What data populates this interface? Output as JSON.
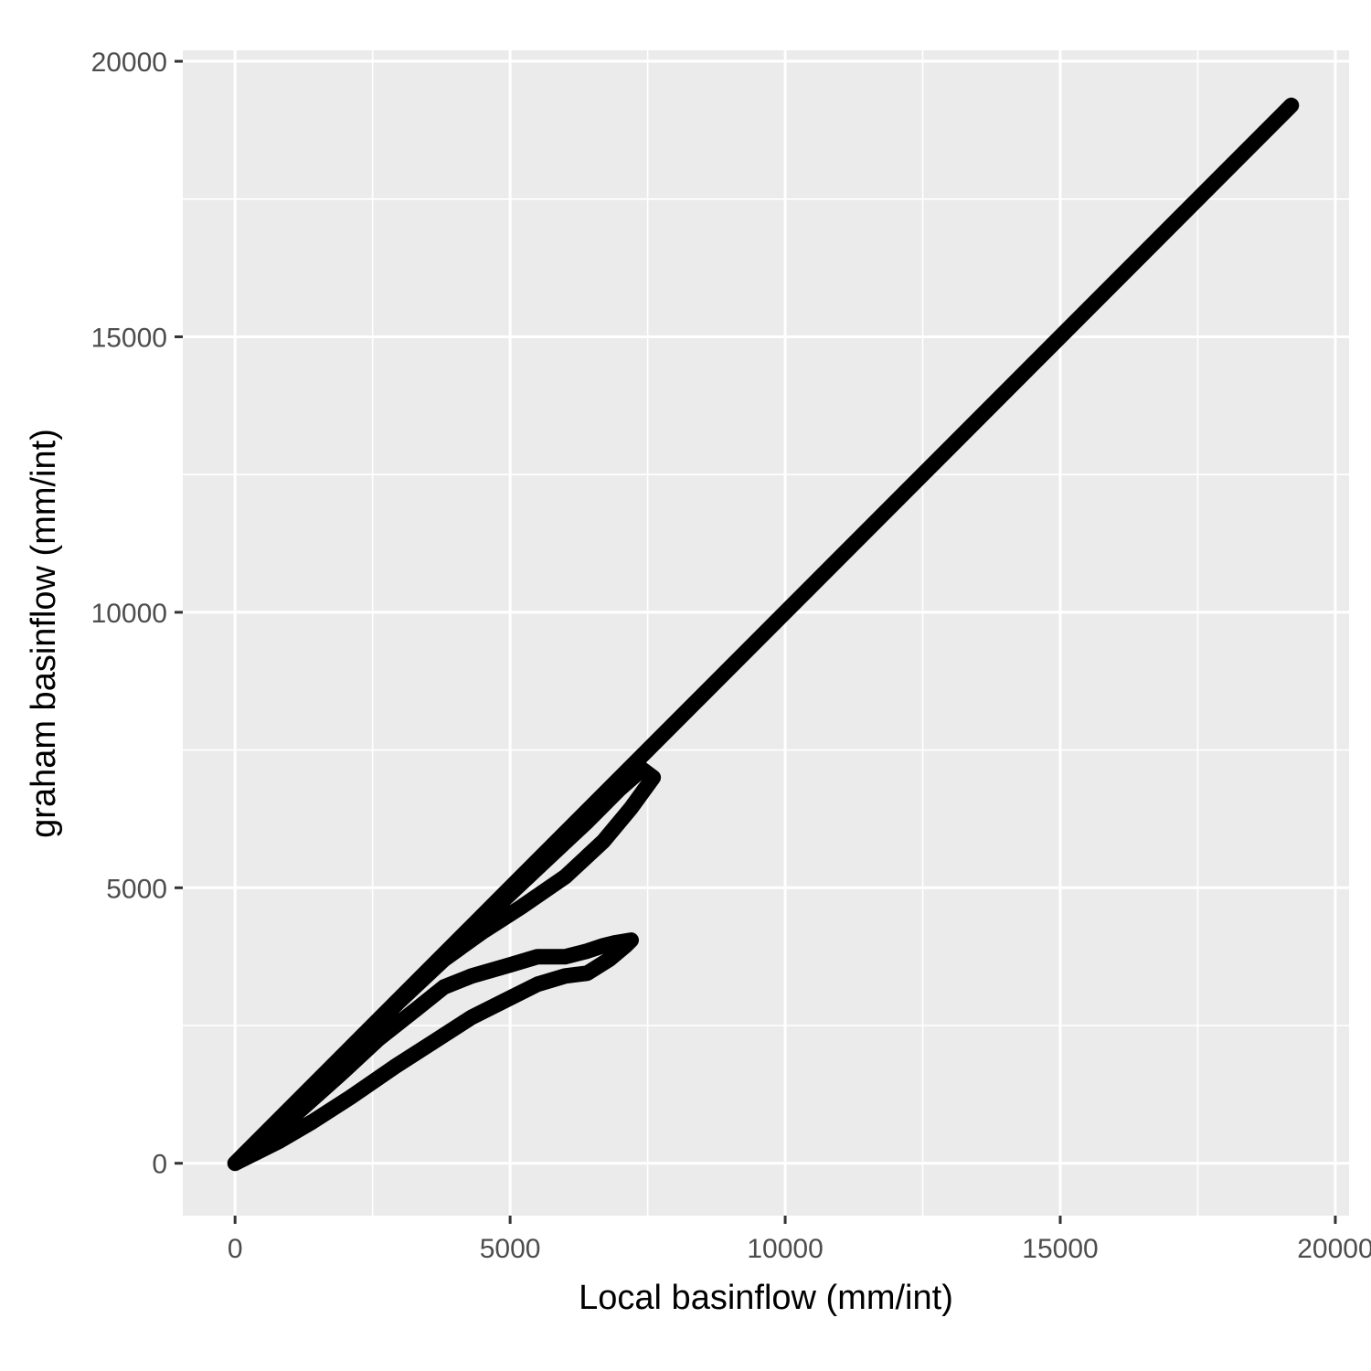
{
  "chart_data": {
    "type": "line",
    "title": "",
    "xlabel": "Local basinflow (mm/int)",
    "ylabel": "graham basinflow (mm/int)",
    "xlim": [
      -950,
      20250
    ],
    "ylim": [
      -950,
      20200
    ],
    "x_ticks": [
      0,
      5000,
      10000,
      15000,
      20000
    ],
    "y_ticks": [
      0,
      5000,
      10000,
      15000,
      20000
    ],
    "x_tick_labels": [
      "0",
      "5000",
      "10000",
      "15000",
      "20000"
    ],
    "y_tick_labels": [
      "0",
      "5000",
      "10000",
      "15000",
      "20000"
    ],
    "grid": true,
    "legend": "none",
    "colors": {
      "panel": "#ebebeb",
      "grid": "#ffffff",
      "line": "#000000",
      "tick_label": "#4d4d4d"
    },
    "series": [
      {
        "points": [
          [
            0,
            0
          ],
          [
            300,
            150
          ],
          [
            800,
            400
          ],
          [
            1400,
            750
          ],
          [
            2100,
            1200
          ],
          [
            2900,
            1750
          ],
          [
            3600,
            2200
          ],
          [
            4300,
            2650
          ],
          [
            5000,
            3000
          ],
          [
            5500,
            3250
          ],
          [
            6000,
            3400
          ],
          [
            6400,
            3450
          ],
          [
            6800,
            3700
          ],
          [
            7100,
            3950
          ],
          [
            7200,
            4050
          ],
          [
            6900,
            4000
          ],
          [
            6700,
            3950
          ],
          [
            6400,
            3850
          ],
          [
            6000,
            3750
          ],
          [
            5500,
            3750
          ],
          [
            5000,
            3600
          ],
          [
            4300,
            3400
          ],
          [
            3800,
            3200
          ],
          [
            3300,
            2800
          ],
          [
            2600,
            2250
          ],
          [
            1900,
            1600
          ],
          [
            1000,
            800
          ],
          [
            400,
            300
          ],
          [
            0,
            0
          ],
          [
            1000,
            980
          ],
          [
            2000,
            1960
          ],
          [
            3000,
            2950
          ],
          [
            3800,
            3700
          ],
          [
            4500,
            4200
          ],
          [
            5200,
            4650
          ],
          [
            6000,
            5200
          ],
          [
            6700,
            5850
          ],
          [
            7200,
            6450
          ],
          [
            7600,
            7000
          ],
          [
            7400,
            7150
          ],
          [
            7000,
            6800
          ],
          [
            6400,
            6200
          ],
          [
            5600,
            5450
          ],
          [
            4800,
            4700
          ],
          [
            4000,
            3950
          ],
          [
            3000,
            2960
          ],
          [
            2000,
            1970
          ],
          [
            1000,
            980
          ],
          [
            0,
            0
          ],
          [
            5000,
            5000
          ],
          [
            10000,
            10000
          ],
          [
            15000,
            15000
          ],
          [
            19200,
            19200
          ]
        ]
      }
    ]
  }
}
